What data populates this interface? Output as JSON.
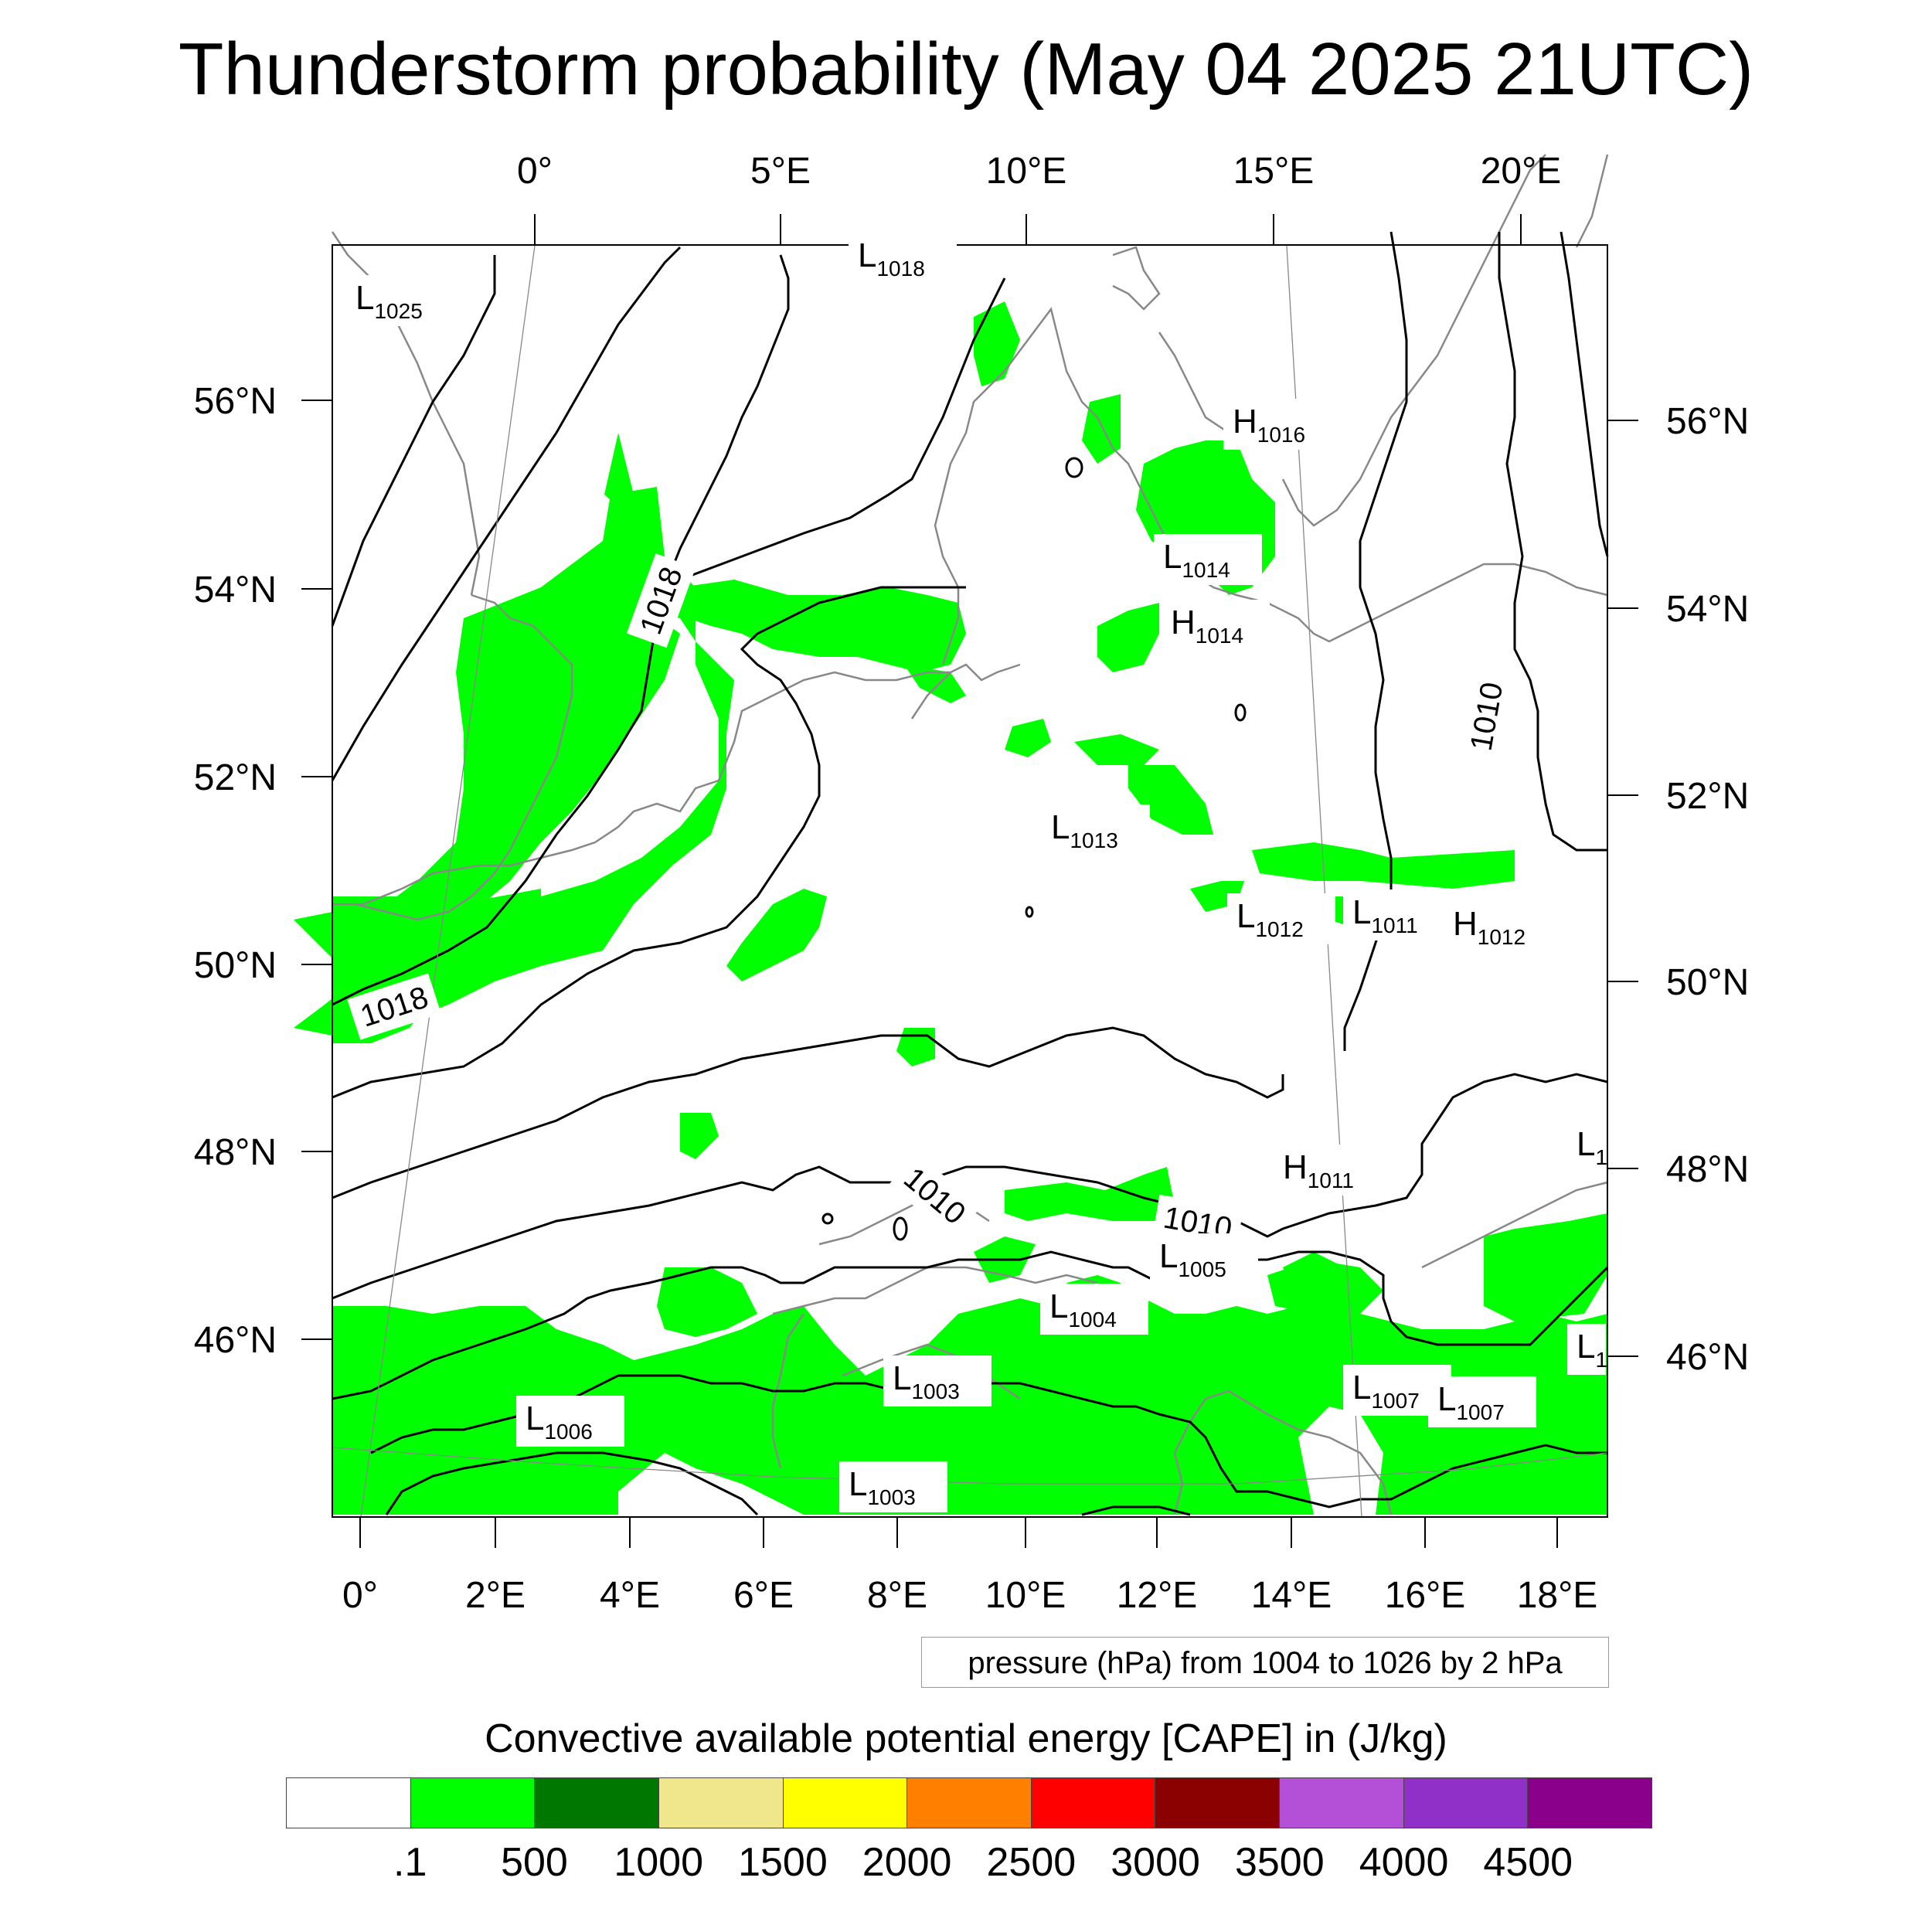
{
  "title": "Thunderstorm probability (May 04 2025 21UTC)",
  "footnote": "pressure (hPa) from 1004 to 1026 by 2 hPa",
  "colorbar": {
    "title": "Convective available potential energy [CAPE] in (J/kg)",
    "colors": [
      "#ffffff",
      "#00ff00",
      "#007800",
      "#f0e68c",
      "#ffff00",
      "#ff8000",
      "#ff0000",
      "#8b0000",
      "#b450d7",
      "#9030c8",
      "#8b008b"
    ],
    "labels": [
      ".1",
      "500",
      "1000",
      "1500",
      "2000",
      "2500",
      "3000",
      "3500",
      "4000",
      "4500"
    ]
  },
  "axes": {
    "top_lon": [
      "0°",
      "5°E",
      "10°E",
      "15°E",
      "20°E"
    ],
    "bottom_lon": [
      "0°",
      "2°E",
      "4°E",
      "6°E",
      "8°E",
      "10°E",
      "12°E",
      "14°E",
      "16°E",
      "18°E"
    ],
    "left_lat": [
      "56°N",
      "54°N",
      "52°N",
      "50°N",
      "48°N",
      "46°N"
    ],
    "right_lat": [
      "56°N",
      "54°N",
      "52°N",
      "50°N",
      "48°N",
      "46°N"
    ]
  },
  "pressure_centers": [
    {
      "type": "L",
      "value": "1025"
    },
    {
      "type": "L",
      "value": "1018"
    },
    {
      "type": "H",
      "value": "1016"
    },
    {
      "type": "L",
      "value": "1014"
    },
    {
      "type": "H",
      "value": "1014"
    },
    {
      "type": "L",
      "value": "1013"
    },
    {
      "type": "L",
      "value": "1012"
    },
    {
      "type": "L",
      "value": "1011"
    },
    {
      "type": "H",
      "value": "1012"
    },
    {
      "type": "H",
      "value": "1011"
    },
    {
      "type": "L",
      "value": "1"
    },
    {
      "type": "L",
      "value": "1005"
    },
    {
      "type": "L",
      "value": "1004"
    },
    {
      "type": "L",
      "value": "1003"
    },
    {
      "type": "L",
      "value": "1006"
    },
    {
      "type": "L",
      "value": "1007"
    },
    {
      "type": "L",
      "value": "1007"
    },
    {
      "type": "L",
      "value": "1"
    },
    {
      "type": "L",
      "value": "1003"
    }
  ],
  "isobar_labels": [
    "1018",
    "1018",
    "1010",
    "1010",
    "1010"
  ]
}
